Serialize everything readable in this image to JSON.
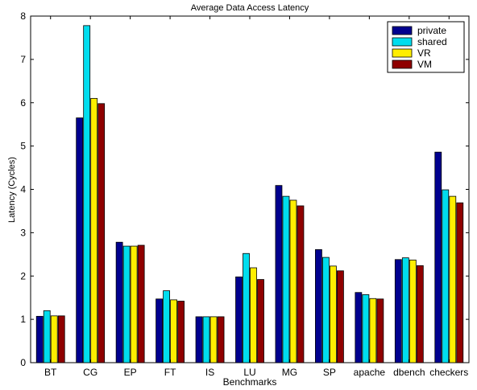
{
  "chart_data": {
    "type": "bar",
    "title": "Average Data Access Latency",
    "xlabel": "Benchmarks",
    "ylabel": "Latency (Cycles)",
    "ylim": [
      0,
      8
    ],
    "yticks": [
      "0",
      "1",
      "2",
      "3",
      "4",
      "5",
      "6",
      "7",
      "8"
    ],
    "grid": false,
    "legend_position": "top-right",
    "categories": [
      "BT",
      "CG",
      "EP",
      "FT",
      "IS",
      "LU",
      "MG",
      "SP",
      "apache",
      "dbench",
      "checkers"
    ],
    "series": [
      {
        "name": "private",
        "color": "#00008f",
        "values": [
          1.07,
          5.65,
          2.78,
          1.47,
          1.06,
          1.98,
          4.09,
          2.61,
          1.62,
          2.38,
          4.86
        ]
      },
      {
        "name": "shared",
        "color": "#00ddee",
        "values": [
          1.2,
          7.78,
          2.69,
          1.66,
          1.06,
          2.52,
          3.84,
          2.43,
          1.57,
          2.42,
          3.99
        ]
      },
      {
        "name": "VR",
        "color": "#ffee00",
        "values": [
          1.08,
          6.1,
          2.69,
          1.45,
          1.06,
          2.19,
          3.75,
          2.23,
          1.48,
          2.37,
          3.84
        ]
      },
      {
        "name": "VM",
        "color": "#8f0000",
        "values": [
          1.08,
          5.98,
          2.71,
          1.42,
          1.06,
          1.92,
          3.62,
          2.12,
          1.47,
          2.24,
          3.69
        ]
      }
    ]
  }
}
